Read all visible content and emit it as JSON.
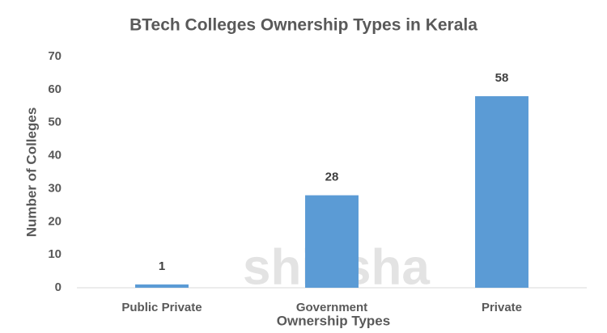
{
  "chart_data": {
    "type": "bar",
    "title": "BTech Colleges Ownership Types in Kerala",
    "watermark": "shiksha",
    "x_label": "Ownership Types",
    "y_label": "Number of Colleges",
    "categories": [
      "Public Private",
      "Government",
      "Private"
    ],
    "values": [
      1,
      28,
      58
    ],
    "color": "#5b9bd5",
    "ylim": [
      0,
      70
    ],
    "yticks": [
      0,
      10,
      20,
      30,
      40,
      50,
      60,
      70
    ],
    "grid": false
  }
}
